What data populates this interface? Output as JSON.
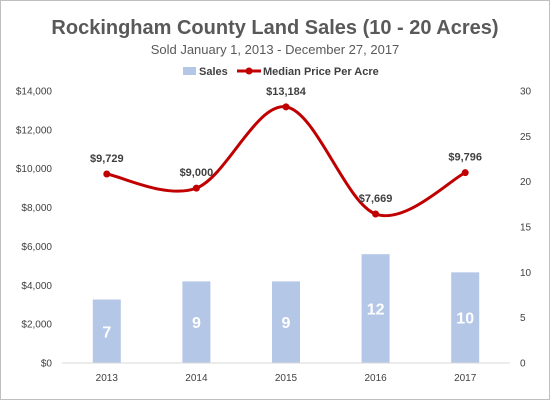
{
  "chart_data": {
    "type": "bar",
    "title": "Rockingham County Land Sales (10 - 20 Acres)",
    "subtitle": "Sold January 1, 2013 - December 27, 2017",
    "categories": [
      "2013",
      "2014",
      "2015",
      "2016",
      "2017"
    ],
    "series": [
      {
        "name": "Sales",
        "type": "bar",
        "axis": "right",
        "values": [
          7,
          9,
          9,
          12,
          10
        ],
        "labels": [
          "7",
          "9",
          "9",
          "12",
          "10"
        ],
        "color": "#b4c7e7"
      },
      {
        "name": "Median Price Per Acre",
        "type": "line",
        "axis": "left",
        "values": [
          9729,
          9000,
          13184,
          7669,
          9796
        ],
        "labels": [
          "$9,729",
          "$9,000",
          "$13,184",
          "$7,669",
          "$9,796"
        ],
        "color": "#c00000"
      }
    ],
    "y_left": {
      "range": [
        0,
        14000
      ],
      "ticks": [
        "$0",
        "$2,000",
        "$4,000",
        "$6,000",
        "$8,000",
        "$10,000",
        "$12,000",
        "$14,000"
      ]
    },
    "y_right": {
      "range": [
        0,
        30
      ],
      "ticks": [
        "0",
        "5",
        "10",
        "15",
        "20",
        "25",
        "30"
      ]
    },
    "grid": false,
    "legend_position": "top"
  }
}
